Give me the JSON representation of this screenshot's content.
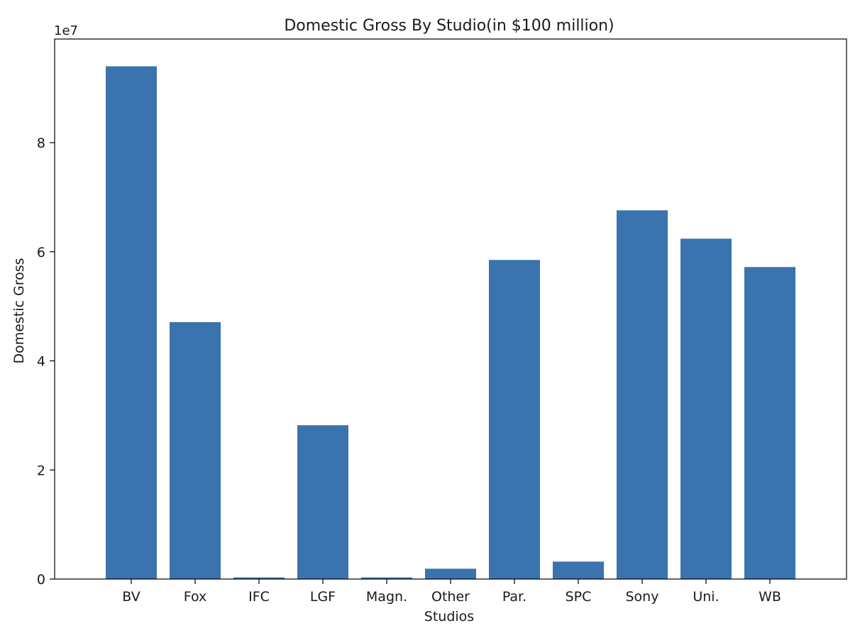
{
  "chart_data": {
    "type": "bar",
    "title": "Domestic Gross By Studio(in $100 million)",
    "xlabel": "Studios",
    "ylabel": "Domestic Gross",
    "y_offset_text": "1e7",
    "categories": [
      "BV",
      "Fox",
      "IFC",
      "LGF",
      "Magn.",
      "Other",
      "Par.",
      "SPC",
      "Sony",
      "Uni.",
      "WB"
    ],
    "values": [
      94000000,
      47100000,
      300000,
      28200000,
      300000,
      1900000,
      58500000,
      3200000,
      67600000,
      62400000,
      57200000
    ],
    "ylim": [
      0,
      99000000
    ],
    "yticks": [
      0,
      20000000,
      40000000,
      60000000,
      80000000
    ],
    "ytick_labels": [
      "0",
      "2",
      "4",
      "6",
      "8"
    ],
    "grid": false,
    "bar_color": "#3a73ae"
  }
}
